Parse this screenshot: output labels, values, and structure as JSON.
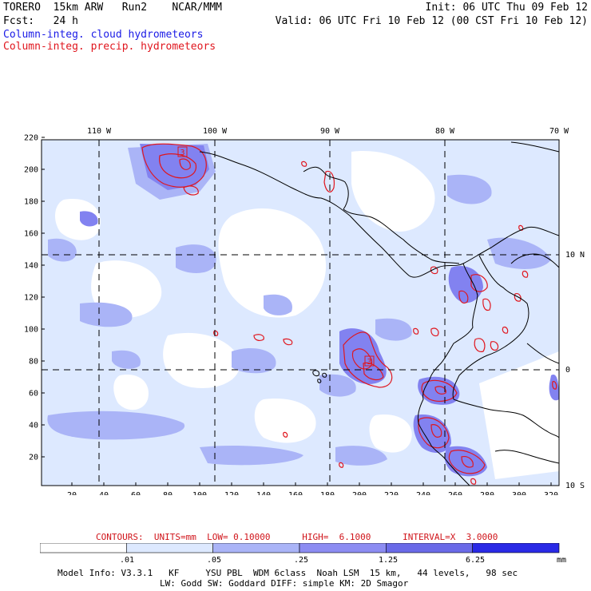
{
  "header": {
    "model": "TORERO",
    "resolution": "15km ARW",
    "run": "Run2",
    "org": "NCAR/MMM",
    "init": "Init: 06 UTC Thu 09 Feb 12",
    "fcst_label": "Fcst:",
    "fcst_value": "24 h",
    "valid": "Valid: 06 UTC Fri 10 Feb 12 (00 CST Fri 10 Feb 12)",
    "line_blue": "Column-integ. cloud hydrometeors",
    "line_red": "Column-integ. precip. hydrometeors"
  },
  "map": {
    "top_lon_labels": [
      "110 W",
      "100 W",
      "90 W",
      "80 W",
      "70 W"
    ],
    "right_lat_labels": [
      "10 N",
      "0",
      "10 S"
    ],
    "y_ticks": [
      "220",
      "200",
      "180",
      "160",
      "140",
      "120",
      "100",
      "80",
      "60",
      "40",
      "20"
    ],
    "x_ticks": [
      "20",
      "40",
      "60",
      "80",
      "100",
      "120",
      "140",
      "160",
      "180",
      "200",
      "220",
      "240",
      "260",
      "280",
      "300",
      "320"
    ],
    "markers": [
      "3",
      "3"
    ],
    "colors": {
      "background": "#ffffff",
      "level1": "#dde9ff",
      "level2": "#aab4f7",
      "level3": "#8282f0",
      "contour": "#e0161e",
      "coast": "#000000"
    }
  },
  "footer": {
    "contours": "CONTOURS:  UNITS=mm  LOW= 0.10000      HIGH=  6.1000      INTERVAL=X  3.0000",
    "colorbar_labels": [
      ".01",
      ".05",
      ".25",
      "1.25",
      "6.25"
    ],
    "colorbar_unit": "mm",
    "colorbar_colors": [
      "#ffffff",
      "#dde9ff",
      "#aab4f7",
      "#8c8cf2",
      "#6a6ae8",
      "#2a2ae6"
    ],
    "model_info": "Model Info: V3.3.1   KF     YSU PBL  WDM 6class  Noah LSM  15 km,   44 levels,   98 sec",
    "model_info2": "LW: Godd SW: Goddard DIFF: simple KM: 2D Smagor"
  }
}
